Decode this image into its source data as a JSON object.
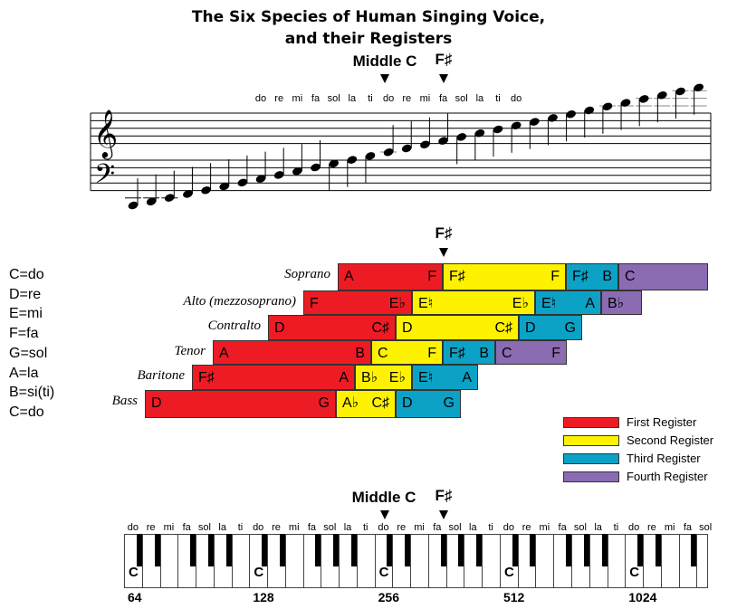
{
  "title": {
    "line1": "The Six Species of Human Singing Voice,",
    "line2": "and their Registers"
  },
  "markers": {
    "middle_c": "Middle C",
    "f_sharp": "F♯"
  },
  "staff_solfege": [
    "do",
    "re",
    "mi",
    "fa",
    "sol",
    "la",
    "ti",
    "do",
    "re",
    "mi",
    "fa",
    "sol",
    "la",
    "ti",
    "do"
  ],
  "key": [
    "C=do",
    "D=re",
    "E=mi",
    "F=fa",
    "G=sol",
    "A=la",
    "B=si(ti)",
    "C=do"
  ],
  "colors": {
    "first": "#ed1c24",
    "second": "#fff200",
    "third": "#0ba2c6",
    "fourth": "#8b6bb2"
  },
  "voices": [
    {
      "name": "Soprano",
      "segments": [
        {
          "reg": "first",
          "from": "A",
          "to": "F"
        },
        {
          "reg": "second",
          "from": "F♯",
          "to": "F"
        },
        {
          "reg": "third",
          "from": "F♯",
          "to": "B"
        },
        {
          "reg": "fourth",
          "from": "C",
          "to": ""
        }
      ]
    },
    {
      "name": "Alto (mezzosoprano)",
      "segments": [
        {
          "reg": "first",
          "from": "F",
          "to": "E♭"
        },
        {
          "reg": "second",
          "from": "E♮",
          "to": "E♭"
        },
        {
          "reg": "third",
          "from": "E♮",
          "to": "A"
        },
        {
          "reg": "fourth",
          "from": "B♭",
          "to": ""
        }
      ]
    },
    {
      "name": "Contralto",
      "segments": [
        {
          "reg": "first",
          "from": "D",
          "to": "C♯"
        },
        {
          "reg": "second",
          "from": "D",
          "to": "C♯"
        },
        {
          "reg": "third",
          "from": "D",
          "to": "G"
        }
      ]
    },
    {
      "name": "Tenor",
      "segments": [
        {
          "reg": "first",
          "from": "A",
          "to": "B"
        },
        {
          "reg": "second",
          "from": "C",
          "to": "F"
        },
        {
          "reg": "third",
          "from": "F♯",
          "to": "B"
        },
        {
          "reg": "fourth",
          "from": "C",
          "to": "F"
        }
      ]
    },
    {
      "name": "Baritone",
      "segments": [
        {
          "reg": "first",
          "from": "F♯",
          "to": "A"
        },
        {
          "reg": "second",
          "from": "B♭",
          "to": "E♭"
        },
        {
          "reg": "third",
          "from": "E♮",
          "to": "A"
        }
      ]
    },
    {
      "name": "Bass",
      "segments": [
        {
          "reg": "first",
          "from": "D",
          "to": "G"
        },
        {
          "reg": "second",
          "from": "A♭",
          "to": "C♯"
        },
        {
          "reg": "third",
          "from": "D",
          "to": "G"
        }
      ]
    }
  ],
  "legend": [
    {
      "reg": "first",
      "label": "First Register"
    },
    {
      "reg": "second",
      "label": "Second Register"
    },
    {
      "reg": "third",
      "label": "Third Register"
    },
    {
      "reg": "fourth",
      "label": "Fourth Register"
    }
  ],
  "keyboard": {
    "solfege": [
      "do",
      "re",
      "mi",
      "fa",
      "sol",
      "la",
      "ti"
    ],
    "c_label": "C",
    "frequencies": [
      "64",
      "128",
      "256",
      "512",
      "1024"
    ]
  }
}
